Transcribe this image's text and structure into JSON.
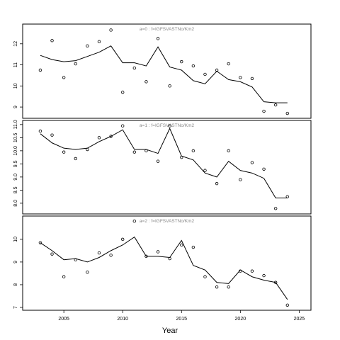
{
  "chart_data": {
    "type": "line",
    "xlabel": "Year",
    "xlim": [
      2001.5,
      2026
    ],
    "xticks": [
      2005,
      2010,
      2015,
      2020,
      2025
    ],
    "x": [
      2003,
      2004,
      2005,
      2006,
      2007,
      2008,
      2009,
      2010,
      2011,
      2012,
      2013,
      2014,
      2015,
      2016,
      2017,
      2018,
      2019,
      2020,
      2021,
      2022,
      2023,
      2024
    ],
    "panels": [
      {
        "title": "a=0  :  f=IGFSVASTNo/Km2",
        "ylim": [
          8.6,
          12.8
        ],
        "yticks": [
          9,
          10,
          11,
          12
        ],
        "series": [
          {
            "kind": "points",
            "values": [
              10.75,
              12.15,
              10.4,
              11.05,
              11.9,
              12.1,
              12.65,
              9.7,
              10.85,
              10.2,
              12.25,
              10.0,
              11.15,
              10.95,
              10.55,
              10.75,
              11.05,
              10.4,
              10.35,
              8.8,
              9.1,
              8.7
            ]
          },
          {
            "kind": "line",
            "values": [
              11.45,
              11.25,
              11.15,
              11.2,
              11.4,
              11.6,
              11.9,
              11.1,
              11.1,
              10.95,
              11.85,
              10.9,
              10.75,
              10.25,
              10.1,
              10.7,
              10.3,
              10.2,
              9.95,
              9.25,
              9.2,
              9.2
            ]
          }
        ]
      },
      {
        "title": "a=1  :  f=IGFSVASTNo/Km2",
        "ylim": [
          7.7,
          11.05
        ],
        "yticks": [
          8.0,
          8.5,
          9.0,
          9.5,
          10.0,
          10.5,
          11.0
        ],
        "series": [
          {
            "kind": "points",
            "values": [
              10.75,
              10.6,
              9.95,
              9.7,
              10.05,
              10.5,
              10.55,
              10.95,
              9.95,
              10.0,
              9.6,
              10.95,
              9.75,
              10.0,
              9.25,
              8.75,
              10.0,
              8.9,
              9.55,
              9.3,
              7.8,
              8.25
            ]
          },
          {
            "kind": "line",
            "values": [
              10.65,
              10.3,
              10.1,
              10.05,
              10.1,
              10.35,
              10.55,
              10.8,
              10.05,
              10.05,
              9.9,
              10.85,
              9.8,
              9.65,
              9.15,
              9.0,
              9.6,
              9.25,
              9.15,
              8.95,
              8.2,
              8.2
            ]
          }
        ]
      },
      {
        "title": "a=2  :  f=IGFSVASTNo/Km2",
        "ylim": [
          7.0,
          10.9
        ],
        "yticks": [
          7,
          8,
          9,
          10
        ],
        "series": [
          {
            "kind": "points",
            "values": [
              9.85,
              9.35,
              8.35,
              9.1,
              8.55,
              9.4,
              9.3,
              10.0,
              10.8,
              9.25,
              9.45,
              9.15,
              9.75,
              9.65,
              8.35,
              7.9,
              7.9,
              8.6,
              8.6,
              8.4,
              8.1,
              7.1
            ]
          },
          {
            "kind": "line",
            "values": [
              9.85,
              9.5,
              9.1,
              9.15,
              9.0,
              9.2,
              9.5,
              9.75,
              10.1,
              9.25,
              9.25,
              9.2,
              9.95,
              8.85,
              8.65,
              8.1,
              8.05,
              8.65,
              8.35,
              8.2,
              8.1,
              7.35
            ]
          }
        ]
      }
    ]
  }
}
